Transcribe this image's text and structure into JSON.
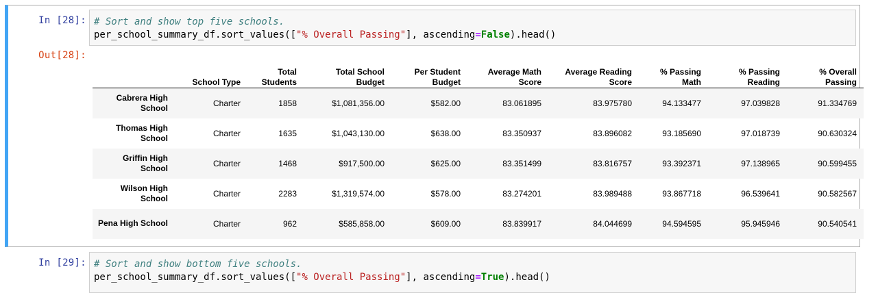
{
  "cell28": {
    "in_prompt": "In [28]:",
    "out_prompt": "Out[28]:",
    "code_comment": "# Sort and show top five schools.",
    "code_pre": "per_school_summary_df.sort_values([",
    "code_string": "\"% Overall Passing\"",
    "code_mid": "], ascending",
    "code_op": "=",
    "code_kw": "False",
    "code_post": ").head()"
  },
  "table": {
    "columns": [
      "School Type",
      "Total Students",
      "Total School Budget",
      "Per Student Budget",
      "Average Math Score",
      "Average Reading Score",
      "% Passing Math",
      "% Passing Reading",
      "% Overall Passing"
    ],
    "rows": [
      {
        "index": "Cabrera High School",
        "cells": [
          "Charter",
          "1858",
          "$1,081,356.00",
          "$582.00",
          "83.061895",
          "83.975780",
          "94.133477",
          "97.039828",
          "91.334769"
        ]
      },
      {
        "index": "Thomas High School",
        "cells": [
          "Charter",
          "1635",
          "$1,043,130.00",
          "$638.00",
          "83.350937",
          "83.896082",
          "93.185690",
          "97.018739",
          "90.630324"
        ]
      },
      {
        "index": "Griffin High School",
        "cells": [
          "Charter",
          "1468",
          "$917,500.00",
          "$625.00",
          "83.351499",
          "83.816757",
          "93.392371",
          "97.138965",
          "90.599455"
        ]
      },
      {
        "index": "Wilson High School",
        "cells": [
          "Charter",
          "2283",
          "$1,319,574.00",
          "$578.00",
          "83.274201",
          "83.989488",
          "93.867718",
          "96.539641",
          "90.582567"
        ]
      },
      {
        "index": "Pena High School",
        "cells": [
          "Charter",
          "962",
          "$585,858.00",
          "$609.00",
          "83.839917",
          "84.044699",
          "94.594595",
          "95.945946",
          "90.540541"
        ]
      }
    ]
  },
  "cell29": {
    "in_prompt": "In [29]:",
    "code_comment": "# Sort and show bottom five schools.",
    "code_pre": "per_school_summary_df.sort_values([",
    "code_string": "\"% Overall Passing\"",
    "code_mid": "], ascending",
    "code_op": "=",
    "code_kw": "True",
    "code_post": ").head()"
  }
}
